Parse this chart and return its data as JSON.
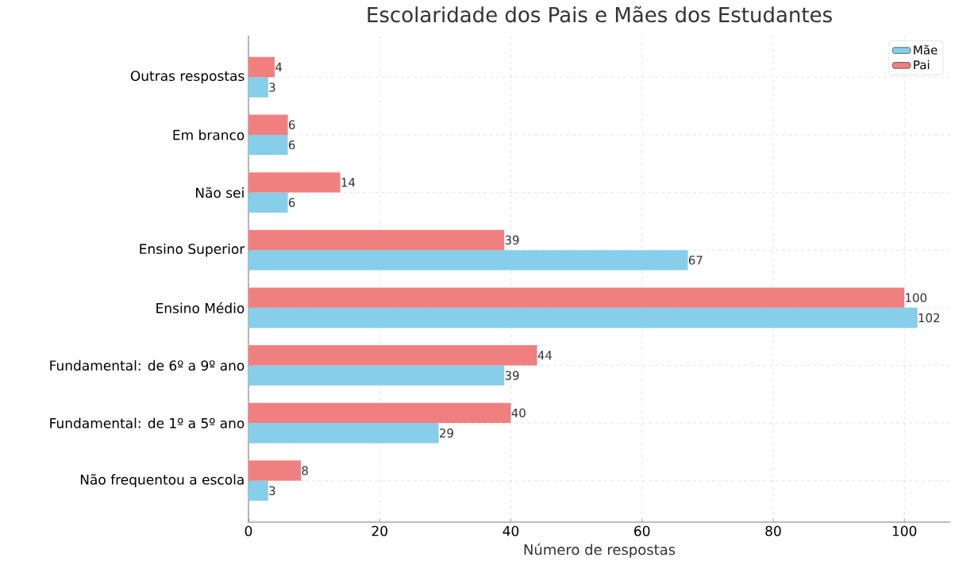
{
  "chart_data": {
    "type": "bar",
    "orientation": "horizontal",
    "title": "Escolaridade dos Pais e Mães dos Estudantes",
    "xlabel": "Número de respostas",
    "categories": [
      "Outras respostas",
      "Em branco",
      "Não sei",
      "Ensino Superior",
      "Ensino Médio",
      "Fundamental: de 6º a 9º ano",
      "Fundamental: de 1º a 5º ano",
      "Não frequentou a escola"
    ],
    "series": [
      {
        "name": "Mãe",
        "color": "#87ceeb",
        "values": [
          3,
          6,
          6,
          67,
          102,
          39,
          29,
          3
        ]
      },
      {
        "name": "Pai",
        "color": "#f08080",
        "values": [
          4,
          6,
          14,
          39,
          100,
          44,
          40,
          8
        ]
      }
    ],
    "xlim": [
      0,
      107
    ],
    "xticks": [
      0,
      20,
      40,
      60,
      80,
      100
    ],
    "grid": true,
    "legend": "top right",
    "data_labels": true
  }
}
